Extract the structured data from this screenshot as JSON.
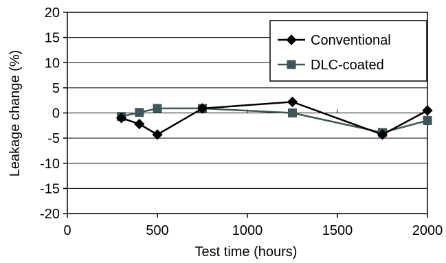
{
  "chart_data": {
    "type": "line",
    "title": "",
    "xlabel": "Test time (hours)",
    "ylabel": "Leakage change (%)",
    "xlim": [
      0,
      2000
    ],
    "ylim": [
      -20,
      20
    ],
    "x_ticks": [
      "0",
      "500",
      "1000",
      "1500",
      "2000"
    ],
    "y_ticks": [
      "20",
      "15",
      "10",
      "5",
      "0",
      "-5",
      "-10",
      "-15",
      "-20"
    ],
    "grid": "horizontal",
    "legend_position": "top-right",
    "series": [
      {
        "name": "Conventional",
        "marker": "diamond",
        "color": "#000000",
        "points": [
          {
            "x": 300,
            "y": -1.0
          },
          {
            "x": 400,
            "y": -2.2
          },
          {
            "x": 500,
            "y": -4.3
          },
          {
            "x": 750,
            "y": 0.9
          },
          {
            "x": 1250,
            "y": 2.2
          },
          {
            "x": 1750,
            "y": -4.3
          },
          {
            "x": 2000,
            "y": 0.5
          }
        ]
      },
      {
        "name": "DLC-coated",
        "marker": "square",
        "color": "#3e5656",
        "points": [
          {
            "x": 300,
            "y": -0.7
          },
          {
            "x": 400,
            "y": 0.1
          },
          {
            "x": 500,
            "y": 0.9
          },
          {
            "x": 750,
            "y": 0.9
          },
          {
            "x": 1250,
            "y": 0.0
          },
          {
            "x": 1750,
            "y": -3.9
          },
          {
            "x": 2000,
            "y": -1.5
          }
        ]
      }
    ]
  }
}
